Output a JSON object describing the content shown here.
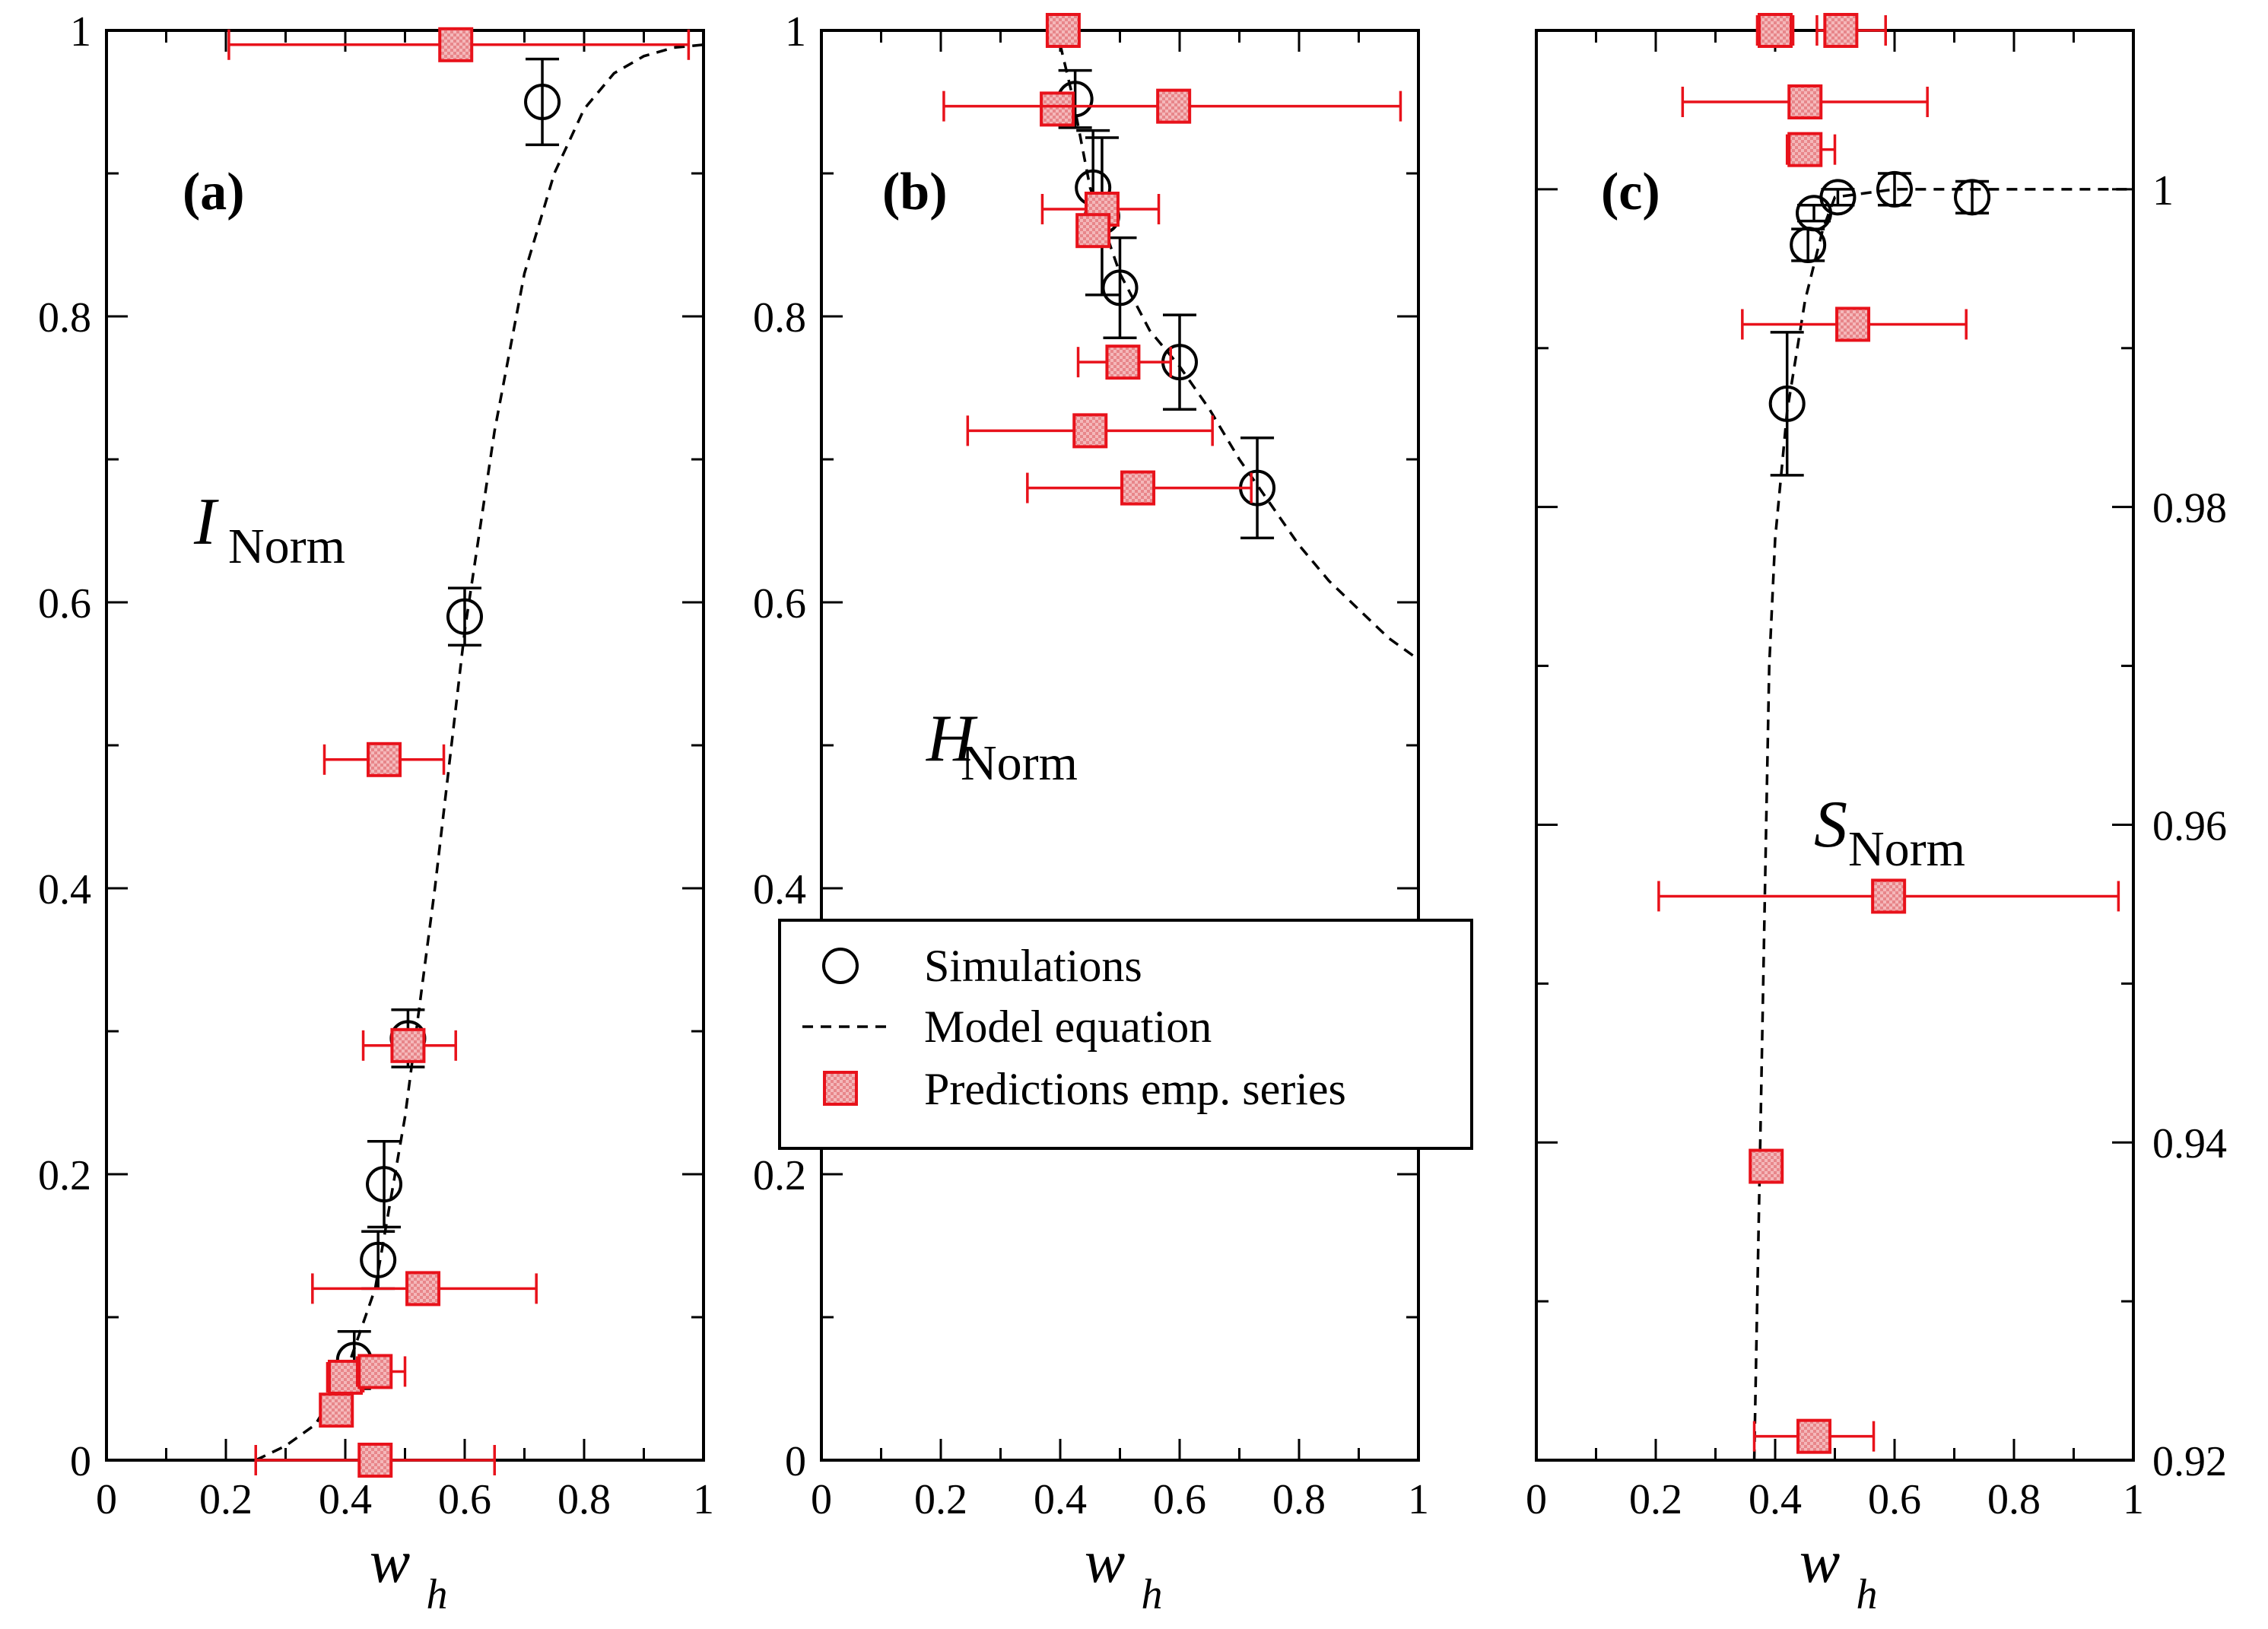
{
  "colors": {
    "prediction": "#e8121b",
    "prediction_fill": "#e8868a",
    "simulation": "#000000",
    "model": "#000000"
  },
  "legend": {
    "placement": "center-left of panel (b)",
    "simulations": "Simulations",
    "model": "Model equation",
    "predictions": "Predictions emp. series"
  },
  "chart_data": [
    {
      "type": "scatter",
      "panel": "(a)",
      "quantity": "I",
      "quantity_sub": "Norm",
      "xlabel": "w",
      "xlabel_sub": "h",
      "xlim": [
        0,
        1
      ],
      "ylim": [
        0,
        1
      ],
      "xticks": [
        "0",
        "0.2",
        "0.4",
        "0.6",
        "0.8",
        "1"
      ],
      "yticks": [
        "0",
        "0.2",
        "0.4",
        "0.6",
        "0.8",
        "1"
      ],
      "model_curve": {
        "x": [
          0.25,
          0.3,
          0.35,
          0.4,
          0.45,
          0.5,
          0.55,
          0.6,
          0.65,
          0.7,
          0.75,
          0.8,
          0.85,
          0.9,
          0.95,
          1.0
        ],
        "y": [
          0.0,
          0.01,
          0.025,
          0.06,
          0.12,
          0.24,
          0.4,
          0.58,
          0.72,
          0.83,
          0.9,
          0.945,
          0.97,
          0.982,
          0.988,
          0.99
        ]
      },
      "simulations": [
        {
          "x": 0.415,
          "y": 0.07,
          "yerr": 0.02
        },
        {
          "x": 0.455,
          "y": 0.14,
          "yerr": 0.02
        },
        {
          "x": 0.465,
          "y": 0.193,
          "yerr": 0.03
        },
        {
          "x": 0.505,
          "y": 0.295,
          "yerr": 0.02
        },
        {
          "x": 0.6,
          "y": 0.59,
          "yerr": 0.02
        },
        {
          "x": 0.73,
          "y": 0.95,
          "yerr": 0.03
        }
      ],
      "predictions": [
        {
          "x": 0.45,
          "y": 0.0,
          "xerr": [
            0.25,
            0.65
          ]
        },
        {
          "x": 0.385,
          "y": 0.035,
          "xerr": [
            0.37,
            0.4
          ]
        },
        {
          "x": 0.4,
          "y": 0.058,
          "xerr": [
            0.37,
            0.43
          ]
        },
        {
          "x": 0.45,
          "y": 0.062,
          "xerr": [
            0.42,
            0.5
          ]
        },
        {
          "x": 0.53,
          "y": 0.12,
          "xerr": [
            0.345,
            0.72
          ]
        },
        {
          "x": 0.505,
          "y": 0.29,
          "xerr": [
            0.43,
            0.585
          ]
        },
        {
          "x": 0.465,
          "y": 0.49,
          "xerr": [
            0.365,
            0.565
          ]
        },
        {
          "x": 0.585,
          "y": 0.99,
          "xerr": [
            0.205,
            0.975
          ]
        }
      ]
    },
    {
      "type": "scatter",
      "panel": "(b)",
      "quantity": "H",
      "quantity_sub": "Norm",
      "xlabel": "w",
      "xlabel_sub": "h",
      "xlim": [
        0,
        1
      ],
      "ylim": [
        0,
        1
      ],
      "xticks": [
        "0",
        "0.2",
        "0.4",
        "0.6",
        "0.8",
        "1"
      ],
      "yticks": [
        "0",
        "0.2",
        "0.4",
        "0.6",
        "0.8",
        "1"
      ],
      "model_curve": {
        "x": [
          0.38,
          0.4,
          0.42,
          0.45,
          0.5,
          0.55,
          0.6,
          0.65,
          0.7,
          0.75,
          0.8,
          0.85,
          0.9,
          0.95,
          1.0
        ],
        "y": [
          1.0,
          0.99,
          0.955,
          0.89,
          0.83,
          0.79,
          0.765,
          0.735,
          0.7,
          0.67,
          0.64,
          0.615,
          0.595,
          0.575,
          0.56
        ]
      },
      "simulations": [
        {
          "x": 0.425,
          "y": 0.952,
          "yerr": 0.02
        },
        {
          "x": 0.455,
          "y": 0.89,
          "yerr": 0.04
        },
        {
          "x": 0.47,
          "y": 0.87,
          "yerr": 0.055
        },
        {
          "x": 0.5,
          "y": 0.82,
          "yerr": 0.035
        },
        {
          "x": 0.6,
          "y": 0.768,
          "yerr": 0.033
        },
        {
          "x": 0.73,
          "y": 0.68,
          "yerr": 0.035
        }
      ],
      "predictions": [
        {
          "x": 0.405,
          "y": 1.0,
          "xerr": [
            0.4,
            0.41
          ]
        },
        {
          "x": 0.395,
          "y": 0.945,
          "xerr": [
            0.38,
            0.41
          ]
        },
        {
          "x": 0.59,
          "y": 0.947,
          "xerr": [
            0.205,
            0.97
          ]
        },
        {
          "x": 0.47,
          "y": 0.875,
          "xerr": [
            0.37,
            0.565
          ]
        },
        {
          "x": 0.455,
          "y": 0.86,
          "xerr": [
            0.43,
            0.475
          ]
        },
        {
          "x": 0.505,
          "y": 0.768,
          "xerr": [
            0.43,
            0.585
          ]
        },
        {
          "x": 0.45,
          "y": 0.72,
          "xerr": [
            0.245,
            0.655
          ]
        },
        {
          "x": 0.53,
          "y": 0.68,
          "xerr": [
            0.345,
            0.72
          ]
        }
      ]
    },
    {
      "type": "scatter",
      "panel": "(c)",
      "quantity": "S",
      "quantity_sub": "Norm",
      "xlabel": "w",
      "xlabel_sub": "h",
      "xlim": [
        0,
        1
      ],
      "ylim": [
        0.92,
        1.01
      ],
      "xticks": [
        "0",
        "0.2",
        "0.4",
        "0.6",
        "0.8",
        "1"
      ],
      "yticks": [
        "0.92",
        "0.94",
        "0.96",
        "0.98",
        "1"
      ],
      "model_curve": {
        "x": [
          0.365,
          0.37,
          0.375,
          0.38,
          0.385,
          0.39,
          0.4,
          0.42,
          0.45,
          0.48,
          0.5,
          0.6,
          0.73,
          1.0
        ],
        "y": [
          0.92,
          0.93,
          0.94,
          0.95,
          0.96,
          0.97,
          0.978,
          0.986,
          0.993,
          0.9975,
          0.9995,
          1.0,
          1.0,
          1.0
        ]
      },
      "simulations": [
        {
          "x": 0.42,
          "y": 0.9865,
          "yerr": 0.0045
        },
        {
          "x": 0.455,
          "y": 0.9965,
          "yerr": 0.001
        },
        {
          "x": 0.465,
          "y": 0.9985,
          "yerr": 0.0005
        },
        {
          "x": 0.505,
          "y": 0.9995,
          "yerr": 0.0005
        },
        {
          "x": 0.6,
          "y": 1.0,
          "yerr": 0.001
        },
        {
          "x": 0.73,
          "y": 0.9995,
          "yerr": 0.001
        }
      ],
      "predictions": [
        {
          "x": 0.465,
          "y": 0.9215,
          "xerr": [
            0.365,
            0.565
          ]
        },
        {
          "x": 0.385,
          "y": 0.9385,
          "xerr": [
            0.37,
            0.4
          ]
        },
        {
          "x": 0.59,
          "y": 0.9555,
          "xerr": [
            0.205,
            0.975
          ]
        },
        {
          "x": 0.53,
          "y": 0.9915,
          "xerr": [
            0.345,
            0.72
          ]
        },
        {
          "x": 0.45,
          "y": 1.0025,
          "xerr": [
            0.42,
            0.5
          ]
        },
        {
          "x": 0.45,
          "y": 1.0055,
          "xerr": [
            0.245,
            0.655
          ]
        },
        {
          "x": 0.4,
          "y": 1.01,
          "xerr": [
            0.37,
            0.43
          ]
        },
        {
          "x": 0.51,
          "y": 1.01,
          "xerr": [
            0.47,
            0.585
          ]
        }
      ]
    }
  ]
}
